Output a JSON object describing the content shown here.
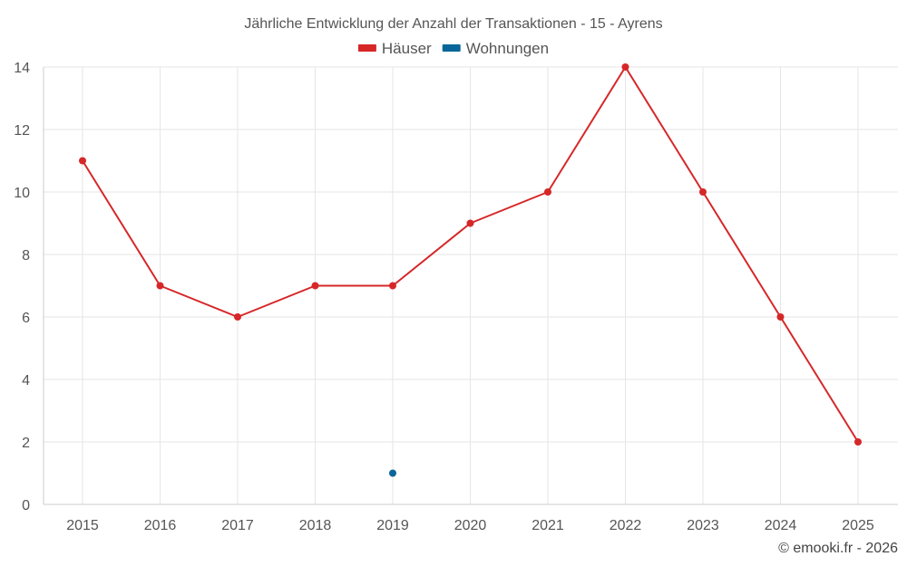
{
  "chart_data": {
    "type": "line",
    "title": "Jährliche Entwicklung der Anzahl der Transaktionen - 15 - Ayrens",
    "categories": [
      "2015",
      "2016",
      "2017",
      "2018",
      "2019",
      "2020",
      "2021",
      "2022",
      "2023",
      "2024",
      "2025"
    ],
    "series": [
      {
        "name": "Häuser",
        "color": "#d62728",
        "values": [
          11,
          7,
          6,
          7,
          7,
          9,
          10,
          14,
          10,
          6,
          2
        ]
      },
      {
        "name": "Wohnungen",
        "color": "#08669a",
        "values": [
          null,
          null,
          null,
          null,
          1,
          null,
          null,
          null,
          null,
          null,
          null
        ]
      }
    ],
    "ylim": [
      0,
      14
    ],
    "yticks": [
      0,
      2,
      4,
      6,
      8,
      10,
      12,
      14
    ],
    "grid": true,
    "legend": "top-center",
    "credit": "© emooki.fr - 2026"
  }
}
